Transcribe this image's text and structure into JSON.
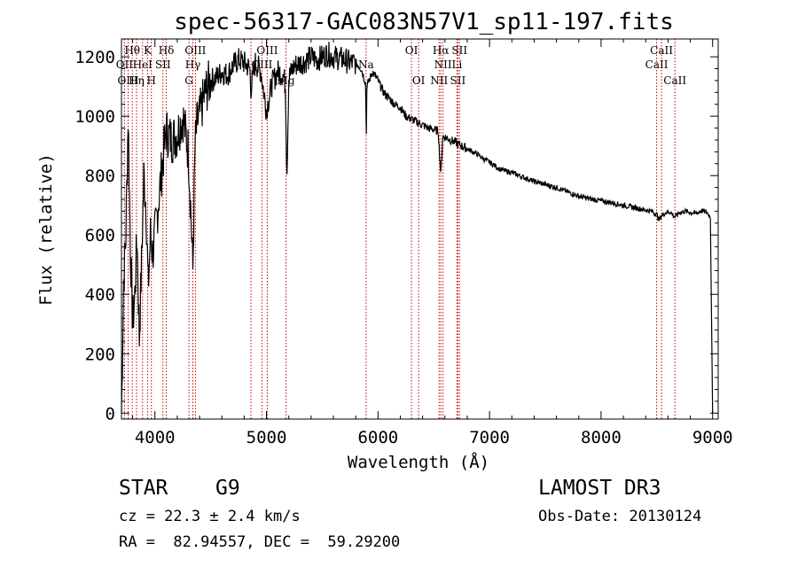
{
  "chart_data": {
    "type": "line",
    "title": "spec-56317-GAC083N57V1_sp11-197.fits",
    "xlabel": "Wavelength (Å)",
    "ylabel": "Flux (relative)",
    "xlim": [
      3700,
      9050
    ],
    "ylim": [
      -20,
      1260
    ],
    "xticks": [
      4000,
      5000,
      6000,
      7000,
      8000,
      9000
    ],
    "yticks": [
      0,
      200,
      400,
      600,
      800,
      1000,
      1200
    ],
    "grid": false,
    "series": [
      {
        "name": "flux",
        "x": [
          3700,
          3720,
          3740,
          3760,
          3780,
          3800,
          3820,
          3840,
          3860,
          3880,
          3900,
          3920,
          3940,
          3960,
          3980,
          4000,
          4050,
          4100,
          4150,
          4200,
          4250,
          4300,
          4320,
          4340,
          4360,
          4380,
          4400,
          4450,
          4500,
          4550,
          4600,
          4650,
          4700,
          4750,
          4800,
          4850,
          4861,
          4900,
          4950,
          5000,
          5050,
          5100,
          5150,
          5170,
          5183,
          5200,
          5250,
          5300,
          5350,
          5400,
          5450,
          5500,
          5550,
          5600,
          5650,
          5700,
          5750,
          5800,
          5850,
          5890,
          5895,
          5900,
          5950,
          6000,
          6050,
          6100,
          6150,
          6200,
          6250,
          6300,
          6350,
          6400,
          6450,
          6500,
          6540,
          6563,
          6580,
          6600,
          6650,
          6700,
          6750,
          6800,
          6850,
          6900,
          6950,
          7000,
          7100,
          7200,
          7300,
          7400,
          7500,
          7600,
          7700,
          7800,
          7900,
          8000,
          8100,
          8200,
          8300,
          8400,
          8450,
          8498,
          8520,
          8542,
          8580,
          8620,
          8662,
          8700,
          8750,
          8800,
          8850,
          8900,
          8950,
          8980,
          9000
        ],
        "y": [
          0,
          450,
          600,
          1000,
          550,
          300,
          400,
          600,
          250,
          500,
          800,
          700,
          420,
          600,
          540,
          600,
          780,
          950,
          920,
          940,
          1000,
          880,
          700,
          480,
          900,
          980,
          1000,
          1080,
          1120,
          1130,
          1150,
          1140,
          1170,
          1190,
          1180,
          1160,
          1090,
          1180,
          1150,
          1020,
          1110,
          1150,
          1140,
          1100,
          800,
          1130,
          1170,
          1180,
          1185,
          1200,
          1190,
          1200,
          1210,
          1200,
          1195,
          1190,
          1180,
          1180,
          1160,
          1110,
          900,
          1100,
          1150,
          1120,
          1080,
          1060,
          1040,
          1030,
          1000,
          990,
          980,
          970,
          960,
          955,
          950,
          800,
          930,
          930,
          920,
          910,
          900,
          890,
          880,
          870,
          855,
          845,
          820,
          810,
          795,
          780,
          770,
          760,
          745,
          730,
          722,
          715,
          708,
          700,
          692,
          684,
          680,
          670,
          650,
          665,
          675,
          678,
          660,
          675,
          680,
          676,
          672,
          682,
          676,
          660,
          0
        ]
      }
    ],
    "line_labels": [
      {
        "text": "Hθ",
        "wl": 3797,
        "row": 1
      },
      {
        "text": "OII",
        "wl": 3727,
        "row": 2
      },
      {
        "text": "OIII",
        "wl": 3760,
        "row": 3
      },
      {
        "text": "K",
        "wl": 3934,
        "row": 1
      },
      {
        "text": "HeI",
        "wl": 3889,
        "row": 2
      },
      {
        "text": "SII",
        "wl": 4072,
        "row": 2
      },
      {
        "text": "Hη",
        "wl": 3835,
        "row": 3
      },
      {
        "text": "H",
        "wl": 3968,
        "row": 3
      },
      {
        "text": "Hδ",
        "wl": 4102,
        "row": 1
      },
      {
        "text": "OIII",
        "wl": 4363,
        "row": 1
      },
      {
        "text": "Hγ",
        "wl": 4340,
        "row": 2
      },
      {
        "text": "G",
        "wl": 4305,
        "row": 3
      },
      {
        "text": "OIII",
        "wl": 5007,
        "row": 1
      },
      {
        "text": "OIII",
        "wl": 4959,
        "row": 2
      },
      {
        "text": "Mg",
        "wl": 5175,
        "row": 3
      },
      {
        "text": "Na",
        "wl": 5893,
        "row": 2
      },
      {
        "text": "OI",
        "wl": 6300,
        "row": 1
      },
      {
        "text": "OI",
        "wl": 6364,
        "row": 3
      },
      {
        "text": "Hα",
        "wl": 6563,
        "row": 1
      },
      {
        "text": "SII",
        "wl": 6731,
        "row": 1
      },
      {
        "text": "NII",
        "wl": 6583,
        "row": 2
      },
      {
        "text": "Li",
        "wl": 6708,
        "row": 2
      },
      {
        "text": "NII",
        "wl": 6548,
        "row": 3
      },
      {
        "text": "SII",
        "wl": 6716,
        "row": 3
      },
      {
        "text": "CaII",
        "wl": 8542,
        "row": 1
      },
      {
        "text": "CaII",
        "wl": 8498,
        "row": 2
      },
      {
        "text": "CaII",
        "wl": 8662,
        "row": 3
      }
    ],
    "line_markers": [
      3727,
      3760,
      3797,
      3835,
      3889,
      3934,
      3968,
      4072,
      4102,
      4305,
      4340,
      4363,
      4861,
      4959,
      5007,
      5175,
      5893,
      6300,
      6364,
      6548,
      6563,
      6583,
      6708,
      6716,
      6731,
      8498,
      8542,
      8662
    ],
    "marker_color": "#cc0000",
    "line_color": "#000000"
  },
  "info": {
    "class_label": "STAR",
    "subclass": "G9",
    "cz": "cz = 22.3 ± 2.4 km/s",
    "coords": "RA =  82.94557, DEC =  59.29200",
    "survey": "LAMOST DR3",
    "obs_date": "Obs-Date: 20130124"
  }
}
